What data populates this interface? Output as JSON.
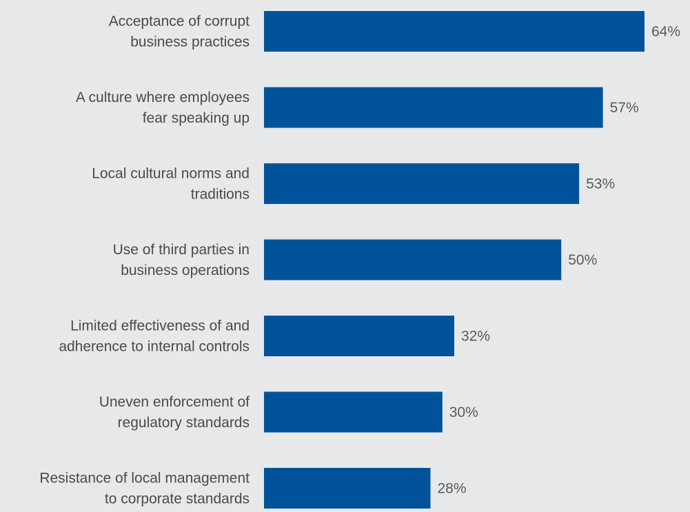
{
  "chart_data": {
    "type": "bar",
    "orientation": "horizontal",
    "title": "",
    "xlabel": "",
    "ylabel": "",
    "categories": [
      [
        "Acceptance of corrupt",
        "business practices"
      ],
      [
        "A culture where employees",
        "fear speaking up"
      ],
      [
        "Local cultural norms and",
        "traditions"
      ],
      [
        "Use of third parties in",
        "business operations"
      ],
      [
        "Limited effectiveness of and",
        "adherence to internal controls"
      ],
      [
        "Uneven enforcement of",
        "regulatory standards"
      ],
      [
        "Resistance of local management",
        "to corporate standards"
      ]
    ],
    "values": [
      64,
      57,
      53,
      50,
      32,
      30,
      28
    ],
    "value_labels": [
      "64%",
      "57%",
      "53%",
      "50%",
      "32%",
      "30%",
      "28%"
    ],
    "xlim": [
      0,
      64
    ],
    "grid": false,
    "legend": "none",
    "colors": {
      "bar": "#00539b",
      "background": "#e7e8e9",
      "category_text": "#4a4a4a",
      "value_text": "#5a5a5a"
    }
  }
}
